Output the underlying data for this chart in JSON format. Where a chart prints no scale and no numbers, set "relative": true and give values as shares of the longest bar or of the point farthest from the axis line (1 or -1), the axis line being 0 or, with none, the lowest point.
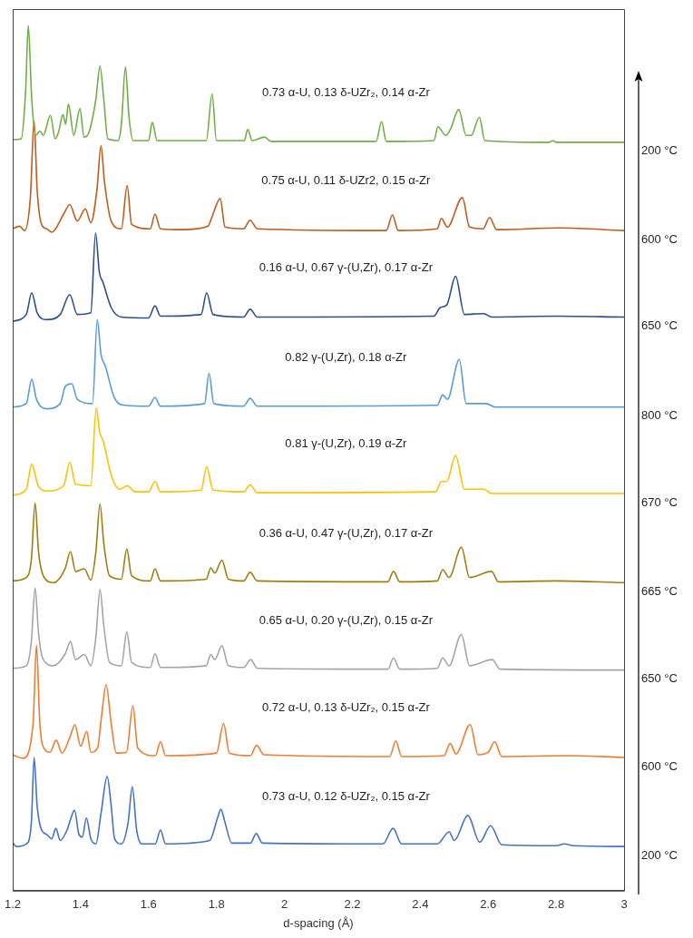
{
  "chart_data": {
    "type": "line",
    "xlabel": "d-spacing (Å)",
    "relative": true,
    "xlim": [
      1.2,
      3
    ],
    "xticks": [
      1.2,
      1.4,
      1.6,
      1.8,
      2,
      2.2,
      2.4,
      2.6,
      2.8,
      3
    ],
    "tick_labels": "x",
    "legend": false,
    "marker": "none",
    "line_style": "solid",
    "annotations": [
      "0.73 α-U, 0.13 δ-UZr₂, 0.14 α-Zr",
      "0.75 α-U, 0.11 δ-UZr2, 0.15 α-Zr",
      "0.16 α-U, 0.67 γ-(U,Zr), 0.17 α-Zr",
      "0.82 γ-(U,Zr), 0.18 α-Zr",
      "0.81 γ-(U,Zr), 0.19 α-Zr",
      "0.36 α-U, 0.47 γ-(U,Zr), 0.17 α-Zr",
      "0.65 α-U, 0.20 γ-(U,Zr), 0.15 α-Zr",
      "0.72 α-U, 0.13 δ-UZr₂, 0.15 α-Zr",
      "0.73 α-U, 0.12 δ-UZr₂, 0.15 α-Zr"
    ],
    "series": [
      {
        "name": "200 °C",
        "color": "#70ad47",
        "x": [
          1.2,
          1.225,
          1.238,
          1.246,
          1.256,
          1.268,
          1.28,
          1.29,
          1.311,
          1.325,
          1.335,
          1.348,
          1.356,
          1.364,
          1.38,
          1.398,
          1.41,
          1.425,
          1.445,
          1.457,
          1.468,
          1.48,
          1.51,
          1.52,
          1.532,
          1.542,
          1.555,
          1.6,
          1.611,
          1.625,
          1.77,
          1.787,
          1.8,
          1.882,
          1.892,
          1.905,
          1.942,
          1.96,
          2.27,
          2.286,
          2.3,
          2.44,
          2.452,
          2.475,
          2.49,
          2.513,
          2.535,
          2.55,
          2.574,
          2.59,
          2.78,
          2.79,
          2.8,
          3.0
        ],
        "values": [
          0.868,
          0.869,
          0.924,
          1.0,
          0.915,
          0.873,
          0.878,
          0.873,
          0.896,
          0.869,
          0.877,
          0.897,
          0.886,
          0.909,
          0.873,
          0.904,
          0.871,
          0.877,
          0.915,
          0.953,
          0.915,
          0.869,
          0.867,
          0.886,
          0.952,
          0.896,
          0.867,
          0.867,
          0.888,
          0.867,
          0.867,
          0.921,
          0.867,
          0.867,
          0.88,
          0.867,
          0.871,
          0.866,
          0.866,
          0.889,
          0.866,
          0.867,
          0.883,
          0.873,
          0.881,
          0.903,
          0.873,
          0.873,
          0.894,
          0.867,
          0.865,
          0.867,
          0.865,
          0.865
        ]
      },
      {
        "name": "600 °C",
        "color": "#bf5b1c",
        "x": [
          1.2,
          1.22,
          1.235,
          1.252,
          1.263,
          1.272,
          1.285,
          1.3,
          1.315,
          1.35,
          1.368,
          1.39,
          1.414,
          1.43,
          1.448,
          1.46,
          1.47,
          1.49,
          1.52,
          1.537,
          1.55,
          1.605,
          1.619,
          1.635,
          1.7,
          1.775,
          1.787,
          1.811,
          1.825,
          1.88,
          1.899,
          1.92,
          2.3,
          2.318,
          2.335,
          2.45,
          2.462,
          2.48,
          2.524,
          2.545,
          2.585,
          2.604,
          2.625,
          2.81,
          3.0
        ],
        "values": [
          0.765,
          0.768,
          0.763,
          0.801,
          0.89,
          0.81,
          0.77,
          0.765,
          0.761,
          0.782,
          0.793,
          0.774,
          0.788,
          0.772,
          0.81,
          0.861,
          0.82,
          0.774,
          0.765,
          0.815,
          0.77,
          0.765,
          0.782,
          0.765,
          0.764,
          0.768,
          0.779,
          0.8,
          0.767,
          0.765,
          0.775,
          0.765,
          0.763,
          0.781,
          0.763,
          0.765,
          0.777,
          0.767,
          0.801,
          0.767,
          0.765,
          0.778,
          0.764,
          0.766,
          0.763
        ]
      },
      {
        "name": "650 °C",
        "color": "#2f4f8c",
        "x": [
          1.2,
          1.24,
          1.256,
          1.272,
          1.3,
          1.34,
          1.368,
          1.39,
          1.43,
          1.444,
          1.455,
          1.466,
          1.49,
          1.52,
          1.6,
          1.619,
          1.635,
          1.755,
          1.771,
          1.79,
          1.88,
          1.899,
          1.92,
          2.44,
          2.459,
          2.478,
          2.504,
          2.53,
          2.587,
          2.61,
          2.8,
          3.0
        ],
        "values": [
          0.658,
          0.666,
          0.691,
          0.668,
          0.66,
          0.666,
          0.689,
          0.666,
          0.668,
          0.76,
          0.715,
          0.703,
          0.674,
          0.663,
          0.662,
          0.676,
          0.664,
          0.666,
          0.691,
          0.666,
          0.663,
          0.672,
          0.663,
          0.664,
          0.674,
          0.677,
          0.71,
          0.666,
          0.667,
          0.663,
          0.664,
          0.663
        ]
      },
      {
        "name": "800 °C",
        "color": "#5b9bd5",
        "x": [
          1.2,
          1.24,
          1.256,
          1.27,
          1.3,
          1.34,
          1.355,
          1.374,
          1.39,
          1.435,
          1.449,
          1.46,
          1.473,
          1.499,
          1.53,
          1.6,
          1.619,
          1.635,
          1.765,
          1.778,
          1.792,
          1.88,
          1.899,
          1.92,
          2.45,
          2.466,
          2.48,
          2.515,
          2.535,
          2.594,
          2.62,
          3.0
        ],
        "values": [
          0.559,
          0.563,
          0.591,
          0.568,
          0.557,
          0.563,
          0.583,
          0.586,
          0.568,
          0.563,
          0.66,
          0.62,
          0.606,
          0.57,
          0.561,
          0.56,
          0.57,
          0.56,
          0.563,
          0.598,
          0.563,
          0.56,
          0.569,
          0.56,
          0.561,
          0.573,
          0.568,
          0.614,
          0.563,
          0.563,
          0.559,
          0.559
        ]
      },
      {
        "name": "670 °C",
        "color": "#ffc000",
        "x": [
          1.2,
          1.24,
          1.256,
          1.275,
          1.3,
          1.35,
          1.368,
          1.385,
          1.43,
          1.446,
          1.456,
          1.466,
          1.492,
          1.515,
          1.538,
          1.56,
          1.6,
          1.619,
          1.635,
          1.755,
          1.771,
          1.79,
          1.88,
          1.899,
          1.92,
          2.445,
          2.462,
          2.478,
          2.504,
          2.53,
          2.587,
          2.61,
          3.0
        ],
        "values": [
          0.457,
          0.464,
          0.493,
          0.468,
          0.462,
          0.468,
          0.495,
          0.47,
          0.468,
          0.558,
          0.53,
          0.52,
          0.478,
          0.464,
          0.468,
          0.461,
          0.461,
          0.473,
          0.461,
          0.463,
          0.49,
          0.463,
          0.461,
          0.469,
          0.46,
          0.461,
          0.473,
          0.473,
          0.503,
          0.464,
          0.464,
          0.459,
          0.459
        ]
      },
      {
        "name": "665 °C",
        "color": "#a07d10",
        "x": [
          1.2,
          1.24,
          1.255,
          1.266,
          1.276,
          1.29,
          1.32,
          1.355,
          1.37,
          1.385,
          1.411,
          1.43,
          1.445,
          1.457,
          1.468,
          1.485,
          1.52,
          1.536,
          1.55,
          1.605,
          1.619,
          1.635,
          1.77,
          1.783,
          1.795,
          1.816,
          1.835,
          1.88,
          1.899,
          1.92,
          2.305,
          2.321,
          2.34,
          2.45,
          2.466,
          2.485,
          2.521,
          2.545,
          2.61,
          2.63,
          2.803,
          3.0
        ],
        "values": [
          0.358,
          0.362,
          0.383,
          0.448,
          0.392,
          0.364,
          0.356,
          0.373,
          0.392,
          0.369,
          0.372,
          0.359,
          0.392,
          0.447,
          0.402,
          0.364,
          0.36,
          0.395,
          0.364,
          0.358,
          0.372,
          0.358,
          0.36,
          0.373,
          0.367,
          0.382,
          0.36,
          0.358,
          0.368,
          0.358,
          0.357,
          0.369,
          0.357,
          0.358,
          0.371,
          0.362,
          0.397,
          0.362,
          0.369,
          0.357,
          0.358,
          0.356
        ]
      },
      {
        "name": "650 °C",
        "color": "#a5a5a5",
        "x": [
          1.2,
          1.24,
          1.255,
          1.266,
          1.276,
          1.29,
          1.32,
          1.355,
          1.37,
          1.385,
          1.411,
          1.43,
          1.445,
          1.457,
          1.468,
          1.485,
          1.52,
          1.536,
          1.55,
          1.605,
          1.619,
          1.635,
          1.77,
          1.783,
          1.795,
          1.816,
          1.835,
          1.88,
          1.901,
          1.92,
          2.305,
          2.321,
          2.34,
          2.45,
          2.466,
          2.485,
          2.521,
          2.545,
          2.612,
          2.635,
          3.0
        ],
        "values": [
          0.257,
          0.26,
          0.288,
          0.35,
          0.298,
          0.267,
          0.26,
          0.274,
          0.288,
          0.267,
          0.273,
          0.26,
          0.293,
          0.348,
          0.307,
          0.264,
          0.26,
          0.299,
          0.264,
          0.258,
          0.274,
          0.258,
          0.26,
          0.273,
          0.267,
          0.283,
          0.26,
          0.258,
          0.267,
          0.257,
          0.256,
          0.269,
          0.256,
          0.257,
          0.269,
          0.26,
          0.296,
          0.26,
          0.267,
          0.256,
          0.255
        ]
      },
      {
        "name": "600 °C",
        "color": "#ed7d31",
        "x": [
          1.2,
          1.23,
          1.26,
          1.27,
          1.28,
          1.295,
          1.31,
          1.328,
          1.345,
          1.37,
          1.383,
          1.4,
          1.418,
          1.43,
          1.45,
          1.462,
          1.475,
          1.49,
          1.505,
          1.535,
          1.554,
          1.568,
          1.62,
          1.635,
          1.65,
          1.8,
          1.821,
          1.838,
          1.9,
          1.918,
          1.94,
          2.31,
          2.328,
          2.345,
          2.47,
          2.488,
          2.505,
          2.547,
          2.57,
          2.6,
          2.619,
          2.64,
          2.836,
          3.0
        ],
        "values": [
          0.157,
          0.153,
          0.193,
          0.284,
          0.193,
          0.163,
          0.16,
          0.174,
          0.159,
          0.179,
          0.192,
          0.167,
          0.184,
          0.16,
          0.165,
          0.203,
          0.238,
          0.193,
          0.159,
          0.16,
          0.214,
          0.165,
          0.156,
          0.172,
          0.156,
          0.159,
          0.193,
          0.159,
          0.156,
          0.168,
          0.157,
          0.155,
          0.173,
          0.155,
          0.156,
          0.17,
          0.158,
          0.192,
          0.157,
          0.16,
          0.172,
          0.155,
          0.156,
          0.154
        ]
      },
      {
        "name": "200 °C",
        "color": "#4472c4",
        "x": [
          1.2,
          1.21,
          1.24,
          1.255,
          1.263,
          1.272,
          1.285,
          1.3,
          1.315,
          1.327,
          1.34,
          1.36,
          1.37,
          1.382,
          1.395,
          1.405,
          1.417,
          1.43,
          1.445,
          1.46,
          1.478,
          1.49,
          1.5,
          1.52,
          1.54,
          1.552,
          1.565,
          1.58,
          1.62,
          1.635,
          1.65,
          1.78,
          1.803,
          1.813,
          1.825,
          1.845,
          1.9,
          1.917,
          1.935,
          2.29,
          2.32,
          2.345,
          2.45,
          2.485,
          2.5,
          2.54,
          2.575,
          2.607,
          2.64,
          2.8,
          2.825,
          2.85,
          3.0
        ],
        "values": [
          0.056,
          0.051,
          0.054,
          0.079,
          0.154,
          0.098,
          0.07,
          0.065,
          0.06,
          0.072,
          0.058,
          0.07,
          0.082,
          0.093,
          0.065,
          0.062,
          0.084,
          0.06,
          0.054,
          0.089,
          0.132,
          0.098,
          0.06,
          0.054,
          0.079,
          0.12,
          0.07,
          0.054,
          0.054,
          0.07,
          0.054,
          0.058,
          0.084,
          0.094,
          0.079,
          0.055,
          0.055,
          0.066,
          0.055,
          0.054,
          0.072,
          0.054,
          0.054,
          0.068,
          0.058,
          0.087,
          0.056,
          0.075,
          0.053,
          0.052,
          0.054,
          0.052,
          0.051
        ]
      }
    ]
  }
}
